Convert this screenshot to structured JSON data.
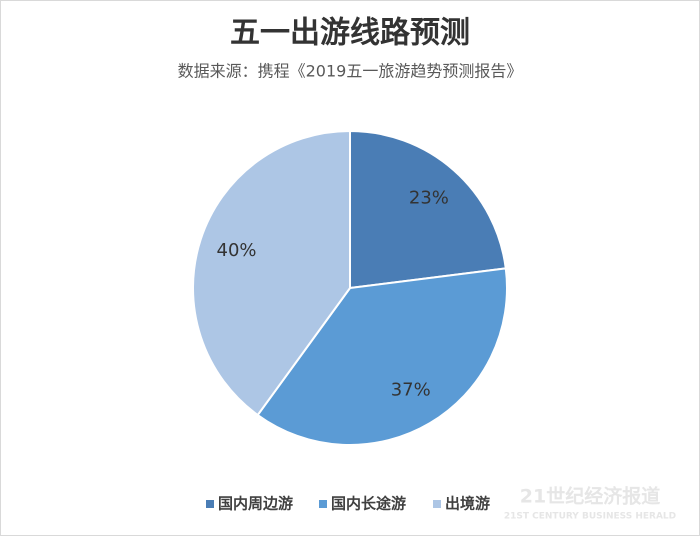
{
  "chart_data": {
    "type": "pie",
    "title": "五一出游线路预测",
    "subtitle": "数据来源：携程《2019五一旅游趋势预测报告》",
    "categories": [
      "国内周边游",
      "国内长途游",
      "出境游"
    ],
    "values": [
      23,
      37,
      40
    ],
    "value_labels": [
      "23%",
      "37%",
      "40%"
    ],
    "colors": [
      "#4a7db5",
      "#5b9bd5",
      "#adc6e5"
    ],
    "legend": "bottom"
  },
  "watermark": {
    "title": "21世纪经济报道",
    "subtitle": "21ST CENTURY BUSINESS HERALD"
  }
}
